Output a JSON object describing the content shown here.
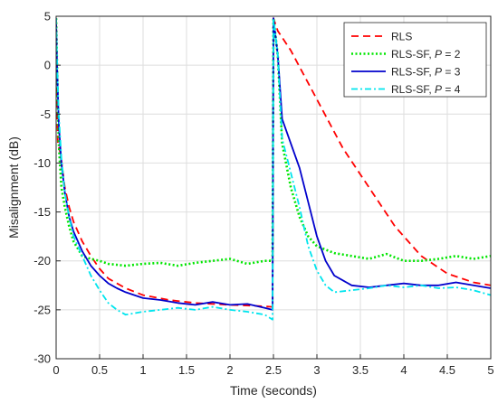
{
  "chart_data": {
    "type": "line",
    "xlabel": "Time (seconds)",
    "ylabel": "Misalignment (dB)",
    "xlim": [
      0,
      5
    ],
    "ylim": [
      -30,
      5
    ],
    "xticks": [
      0,
      0.5,
      1,
      1.5,
      2,
      2.5,
      3,
      3.5,
      4,
      4.5,
      5
    ],
    "xtick_labels": [
      "0",
      "0.5",
      "1",
      "1.5",
      "2",
      "2.5",
      "3",
      "3.5",
      "4",
      "4.5",
      "5"
    ],
    "yticks": [
      -30,
      -25,
      -20,
      -15,
      -10,
      -5,
      0,
      5
    ],
    "ytick_labels": [
      "-30",
      "-25",
      "-20",
      "-15",
      "-10",
      "-5",
      "0",
      "5"
    ],
    "grid": true,
    "legend_position": "top-right",
    "series": [
      {
        "name": "RLS",
        "legend_base": "RLS",
        "legend_italic": "",
        "legend_suffix": "",
        "color": "#ff0000",
        "style": "dashed",
        "x": [
          0,
          0.02,
          0.05,
          0.1,
          0.15,
          0.2,
          0.3,
          0.4,
          0.5,
          0.6,
          0.8,
          1.0,
          1.3,
          1.6,
          2.0,
          2.3,
          2.49,
          2.5,
          2.55,
          2.7,
          3.0,
          3.3,
          3.6,
          3.9,
          4.2,
          4.5,
          4.8,
          5.0
        ],
        "y": [
          0,
          -8,
          -9,
          -12.5,
          -14.5,
          -16,
          -18,
          -19.5,
          -20.8,
          -21.8,
          -22.8,
          -23.5,
          -24,
          -24.3,
          -24.5,
          -24.6,
          -24.7,
          4.8,
          3.5,
          1.5,
          -3.5,
          -8.5,
          -12.5,
          -16.5,
          -19.5,
          -21.3,
          -22.2,
          -22.5
        ]
      },
      {
        "name": "RLS-SF, P = 2",
        "legend_base": "RLS-SF, ",
        "legend_italic": "P",
        "legend_suffix": " = 2",
        "color": "#00e600",
        "style": "dotted",
        "x": [
          0,
          0.01,
          0.03,
          0.06,
          0.1,
          0.15,
          0.2,
          0.3,
          0.4,
          0.5,
          0.6,
          0.8,
          1.0,
          1.2,
          1.4,
          1.6,
          1.8,
          2.0,
          2.2,
          2.4,
          2.49,
          2.5,
          2.55,
          2.6,
          2.7,
          2.8,
          2.9,
          3.0,
          3.2,
          3.4,
          3.6,
          3.8,
          4.0,
          4.2,
          4.4,
          4.6,
          4.8,
          5.0
        ],
        "y": [
          4.8,
          0,
          -8,
          -12.5,
          -14.5,
          -16.5,
          -18,
          -19.5,
          -19.8,
          -20,
          -20.3,
          -20.5,
          -20.3,
          -20.2,
          -20.5,
          -20.2,
          -20,
          -19.8,
          -20.3,
          -20,
          -20,
          4.8,
          1,
          -8,
          -12.5,
          -15.5,
          -17.5,
          -18.5,
          -19.2,
          -19.5,
          -19.8,
          -19.3,
          -20,
          -20,
          -19.8,
          -19.5,
          -19.8,
          -19.5
        ]
      },
      {
        "name": "RLS-SF, P = 3",
        "legend_base": "RLS-SF, ",
        "legend_italic": "P",
        "legend_suffix": " = 3",
        "color": "#0000cc",
        "style": "solid",
        "x": [
          0,
          0.01,
          0.03,
          0.06,
          0.1,
          0.15,
          0.2,
          0.3,
          0.4,
          0.5,
          0.6,
          0.7,
          0.8,
          1.0,
          1.2,
          1.4,
          1.6,
          1.8,
          2.0,
          2.2,
          2.4,
          2.49,
          2.5,
          2.55,
          2.6,
          2.7,
          2.8,
          2.9,
          3.0,
          3.1,
          3.2,
          3.4,
          3.6,
          3.8,
          4.0,
          4.2,
          4.4,
          4.6,
          4.8,
          5.0
        ],
        "y": [
          4.8,
          0,
          -6,
          -10,
          -13,
          -15.5,
          -17,
          -19,
          -20.5,
          -21.5,
          -22.3,
          -22.8,
          -23.2,
          -23.8,
          -24,
          -24.3,
          -24.5,
          -24.2,
          -24.5,
          -24.4,
          -24.8,
          -25,
          4.8,
          1,
          -5.5,
          -8,
          -10.5,
          -14,
          -17.5,
          -20,
          -21.5,
          -22.5,
          -22.7,
          -22.5,
          -22.3,
          -22.5,
          -22.5,
          -22.2,
          -22.5,
          -22.8
        ]
      },
      {
        "name": "RLS-SF, P = 4",
        "legend_base": "RLS-SF, ",
        "legend_italic": "P",
        "legend_suffix": " = 4",
        "color": "#00e5ee",
        "style": "dashdot",
        "x": [
          0,
          0.01,
          0.03,
          0.06,
          0.1,
          0.15,
          0.2,
          0.3,
          0.4,
          0.5,
          0.6,
          0.7,
          0.8,
          1.0,
          1.2,
          1.4,
          1.6,
          1.8,
          2.0,
          2.2,
          2.4,
          2.49,
          2.5,
          2.55,
          2.6,
          2.7,
          2.8,
          2.9,
          3.0,
          3.1,
          3.2,
          3.4,
          3.6,
          3.8,
          4.0,
          4.2,
          4.4,
          4.6,
          4.8,
          5.0
        ],
        "y": [
          4.8,
          0,
          -5,
          -9.5,
          -13,
          -15.5,
          -17.5,
          -19.5,
          -21.5,
          -23,
          -24.3,
          -25,
          -25.5,
          -25.2,
          -25,
          -24.8,
          -25,
          -24.7,
          -25,
          -25.2,
          -25.5,
          -26,
          4.8,
          1,
          -7.5,
          -11,
          -14.5,
          -18.5,
          -21,
          -22.5,
          -23.2,
          -23,
          -22.8,
          -22.5,
          -22.7,
          -22.5,
          -22.8,
          -22.7,
          -23,
          -23.5
        ]
      }
    ]
  }
}
